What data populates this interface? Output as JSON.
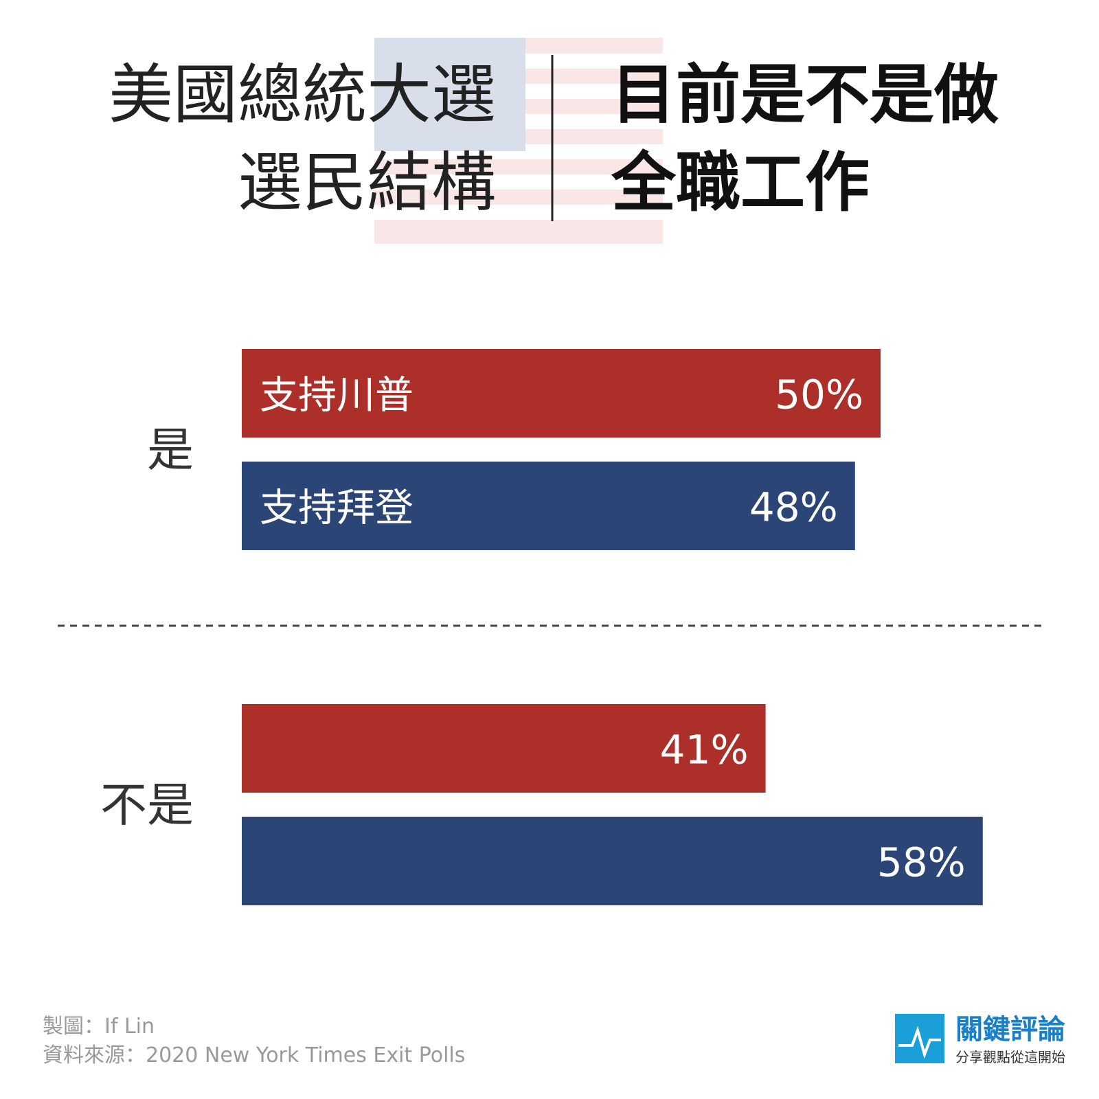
{
  "chart_data": {
    "type": "bar",
    "orientation": "horizontal",
    "title": [
      "美國總統大選",
      "選民結構"
    ],
    "subtitle": [
      "目前是不是做",
      "全職工作"
    ],
    "categories": [
      "是",
      "不是"
    ],
    "series": [
      {
        "name": "支持川普",
        "color": "#ad2f2a",
        "values": [
          50,
          41
        ],
        "value_labels": [
          "50%",
          "41%"
        ]
      },
      {
        "name": "支持拜登",
        "color": "#2b4676",
        "values": [
          48,
          58
        ],
        "value_labels": [
          "48%",
          "58%"
        ]
      }
    ],
    "credit": "製圖：If Lin",
    "source": "資料來源：2020 New York Times Exit Polls",
    "logo": {
      "name": "關鍵評論",
      "tagline": "分享觀點從這開始"
    }
  }
}
